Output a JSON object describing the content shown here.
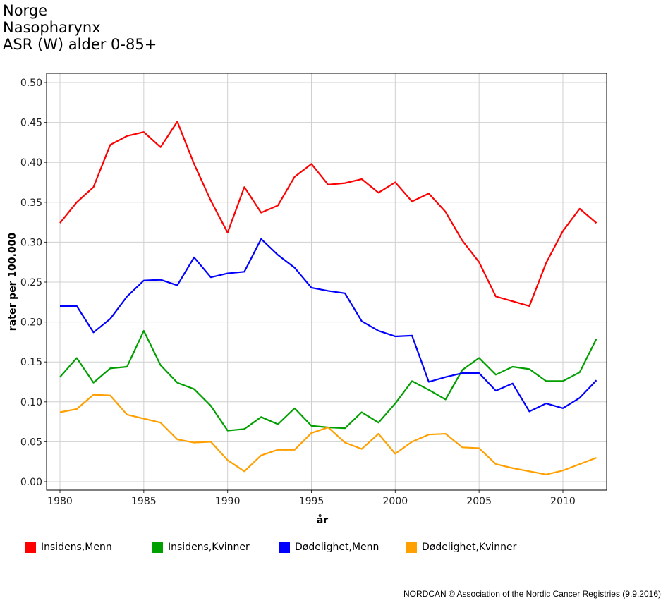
{
  "title_lines": [
    "Norge",
    "Nasopharynx",
    "ASR (W) alder 0-85+"
  ],
  "credit": "NORDCAN © Association of the Nordic Cancer Registries (9.9.2016)",
  "chart_data": {
    "type": "line",
    "xlabel": "år",
    "ylabel": "rater per 100.000",
    "xlim": [
      1979.2,
      2014.6
    ],
    "ylim": [
      -0.017,
      0.512
    ],
    "xticks": [
      1980,
      1985,
      1990,
      1995,
      2000,
      2005,
      2010
    ],
    "yticks": [
      "0.00",
      "0.05",
      "0.10",
      "0.15",
      "0.20",
      "0.25",
      "0.30",
      "0.35",
      "0.40",
      "0.45",
      "0.50"
    ],
    "grid": true,
    "legend_position": "bottom",
    "x": [
      1980,
      1981,
      1982,
      1983,
      1984,
      1985,
      1986,
      1987,
      1988,
      1989,
      1990,
      1991,
      1992,
      1993,
      1994,
      1995,
      1996,
      1997,
      1998,
      1999,
      2000,
      2001,
      2002,
      2003,
      2004,
      2005,
      2006,
      2007,
      2008,
      2009,
      2010,
      2011,
      2012
    ],
    "series": [
      {
        "name": "Insidens,Menn",
        "color": "#ff0000",
        "values": [
          0.324,
          0.35,
          0.369,
          0.422,
          0.433,
          0.438,
          0.419,
          0.451,
          0.398,
          0.352,
          0.312,
          0.369,
          0.337,
          0.346,
          0.382,
          0.398,
          0.372,
          0.374,
          0.379,
          0.362,
          0.375,
          0.351,
          0.361,
          0.338,
          0.302,
          0.275,
          0.232,
          0.226,
          0.22,
          0.274,
          0.314,
          0.342,
          0.324
        ]
      },
      {
        "name": "Insidens,Kvinner",
        "color": "#00a000",
        "values": [
          0.131,
          0.155,
          0.124,
          0.142,
          0.144,
          0.189,
          0.146,
          0.124,
          0.116,
          0.095,
          0.064,
          0.066,
          0.081,
          0.072,
          0.092,
          0.07,
          0.068,
          0.067,
          0.087,
          0.074,
          0.098,
          0.126,
          0.115,
          0.103,
          0.14,
          0.155,
          0.134,
          0.144,
          0.141,
          0.126,
          0.126,
          0.137,
          0.179
        ]
      },
      {
        "name": "Dødelighet,Menn",
        "color": "#0000ff",
        "values": [
          0.22,
          0.22,
          0.187,
          0.204,
          0.232,
          0.252,
          0.253,
          0.246,
          0.281,
          0.256,
          0.261,
          0.263,
          0.304,
          0.284,
          0.268,
          0.243,
          0.239,
          0.236,
          0.201,
          0.189,
          0.182,
          0.183,
          0.125,
          0.131,
          0.136,
          0.136,
          0.114,
          0.123,
          0.088,
          0.098,
          0.092,
          0.105,
          0.127
        ]
      },
      {
        "name": "Dødelighet,Kvinner",
        "color": "#ffa000",
        "values": [
          0.087,
          0.091,
          0.109,
          0.108,
          0.084,
          0.079,
          0.074,
          0.053,
          0.049,
          0.05,
          0.027,
          0.013,
          0.033,
          0.04,
          0.04,
          0.061,
          0.068,
          0.049,
          0.041,
          0.06,
          0.035,
          0.05,
          0.059,
          0.06,
          0.043,
          0.042,
          0.022,
          0.017,
          0.013,
          0.009,
          0.014,
          0.022,
          0.03
        ]
      }
    ]
  }
}
